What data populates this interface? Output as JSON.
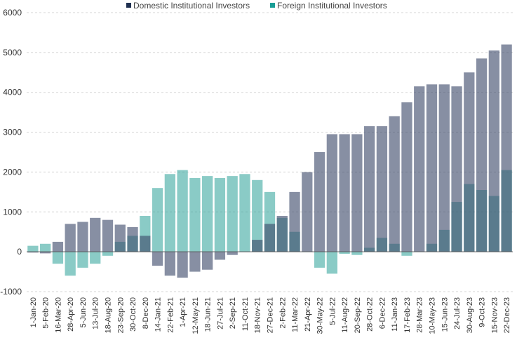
{
  "chart_data": {
    "type": "bar",
    "title": "",
    "xlabel": "",
    "ylabel": "",
    "ylim": [
      -1000,
      6000
    ],
    "yticks": [
      -1000,
      0,
      1000,
      2000,
      3000,
      4000,
      5000,
      6000
    ],
    "grid": "horizontal dashed",
    "legend": "top-center",
    "x_tick_labels": [
      "1-Jan-20",
      "5-Feb-20",
      "16-Mar-20",
      "28-Apr-20",
      "5-Jun-20",
      "13-Jul-20",
      "18-Aug-20",
      "23-Sep-20",
      "30-Oct-20",
      "8-Dec-20",
      "14-Jan-21",
      "22-Feb-21",
      "1-Apr-21",
      "12-May-21",
      "18-Jun-21",
      "27-Jul-21",
      "2-Sep-21",
      "11-Oct-21",
      "18-Nov-21",
      "27-Dec-21",
      "2-Feb-22",
      "11-Mar-22",
      "21-Apr-22",
      "30-May-22",
      "5-Jul-22",
      "11-Aug-22",
      "20-Sep-22",
      "28-Oct-22",
      "6-Dec-22",
      "11-Jan-23",
      "17-Feb-23",
      "28-Mar-23",
      "10-May-23",
      "15-Jun-23",
      "24-Jul-23",
      "30-Aug-23",
      "9-Oct-23",
      "15-Nov-23",
      "22-Dec-23"
    ],
    "series": [
      {
        "name": "Domestic Institutional Investors",
        "color": "#3d4a6b",
        "values": [
          -20,
          -40,
          250,
          700,
          750,
          850,
          800,
          680,
          620,
          400,
          -350,
          -600,
          -650,
          -500,
          -450,
          -200,
          -80,
          0,
          300,
          700,
          900,
          1500,
          2000,
          2500,
          2950,
          2950,
          2950,
          3150,
          3150,
          3400,
          3750,
          4150,
          4200,
          4200,
          4150,
          4500,
          4850,
          5050,
          5200
        ]
      },
      {
        "name": "Foreign Institutional Investors",
        "color": "#2aa198",
        "values": [
          150,
          200,
          -300,
          -600,
          -400,
          -300,
          -100,
          250,
          400,
          900,
          1600,
          1950,
          2050,
          1850,
          1900,
          1850,
          1900,
          1950,
          1800,
          1500,
          850,
          500,
          0,
          -400,
          -550,
          -50,
          -80,
          100,
          350,
          200,
          -100,
          0,
          200,
          550,
          1250,
          1700,
          1550,
          1400,
          2050
        ]
      }
    ]
  },
  "legend": {
    "items": [
      {
        "label": "Domestic Institutional Investors",
        "color": "#1f3050"
      },
      {
        "label": "Foreign Institutional Investors",
        "color": "#1a9e96"
      }
    ]
  }
}
